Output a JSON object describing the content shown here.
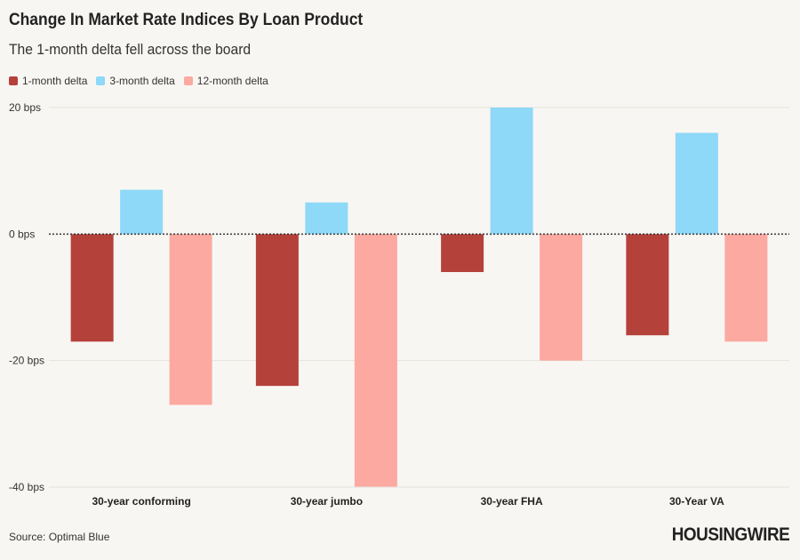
{
  "title": "Change In Market Rate Indices By Loan Product",
  "subtitle": "The 1-month delta fell across the board",
  "source": "Source: Optimal Blue",
  "logo": "HOUSINGWIRE",
  "chart_data": {
    "type": "bar",
    "title": "Change In Market Rate Indices By Loan Product",
    "subtitle": "The 1-month delta fell across the board",
    "xlabel": "",
    "ylabel": "",
    "ylim": [
      -40,
      20
    ],
    "yticks": [
      20,
      0,
      -20,
      -40
    ],
    "ytick_labels": [
      "20 bps",
      "0 bps",
      "-20 bps",
      "-40 bps"
    ],
    "categories": [
      "30-year conforming",
      "30-year jumbo",
      "30-year FHA",
      "30-Year VA"
    ],
    "series": [
      {
        "name": "1-month delta",
        "color": "#b5413b",
        "values": [
          -17,
          -24,
          -6,
          -16
        ]
      },
      {
        "name": "3-month delta",
        "color": "#8ed8f8",
        "values": [
          7,
          5,
          20,
          16
        ]
      },
      {
        "name": "12-month delta",
        "color": "#fba9a1",
        "values": [
          -27,
          -40,
          -20,
          -17
        ]
      }
    ],
    "legend_position": "top-left",
    "grid": true
  }
}
